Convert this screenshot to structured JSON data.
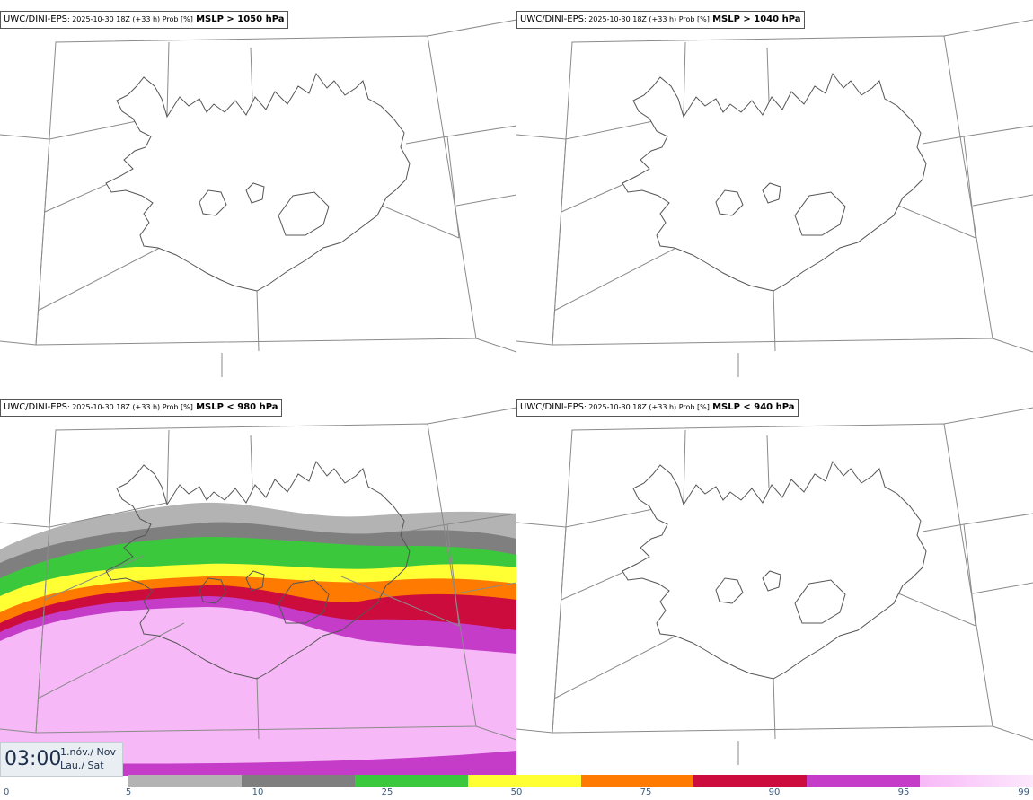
{
  "panels": [
    {
      "model": "UWC/DINI-EPS",
      "meta": ": 2025-10-30 18Z (+33 h) Prob [%]",
      "threshold": "MSLP > 1050 hPa",
      "has_field": false
    },
    {
      "model": "UWC/DINI-EPS",
      "meta": ": 2025-10-30 18Z (+33 h) Prob [%]",
      "threshold": "MSLP > 1040 hPa",
      "has_field": false
    },
    {
      "model": "UWC/DINI-EPS",
      "meta": ": 2025-10-30 18Z (+33 h) Prob [%]",
      "threshold": "MSLP < 980 hPa",
      "has_field": true
    },
    {
      "model": "UWC/DINI-EPS",
      "meta": ": 2025-10-30 18Z (+33 h) Prob [%]",
      "threshold": "MSLP < 940 hPa",
      "has_field": false
    }
  ],
  "valid_time": {
    "clock": "03:00",
    "date_line": "1.nóv./ Nov",
    "day_line": "Lau./ Sat"
  },
  "colorbar": {
    "ticks": [
      "0",
      "5",
      "10",
      "25",
      "50",
      "75",
      "90",
      "95",
      "99"
    ],
    "colors": [
      "#b3b3b3",
      "#7f7f7f",
      "#3cc83c",
      "#ffff33",
      "#ff7a00",
      "#cc0c3c",
      "#c43cc8",
      "#f7b8f7"
    ]
  }
}
